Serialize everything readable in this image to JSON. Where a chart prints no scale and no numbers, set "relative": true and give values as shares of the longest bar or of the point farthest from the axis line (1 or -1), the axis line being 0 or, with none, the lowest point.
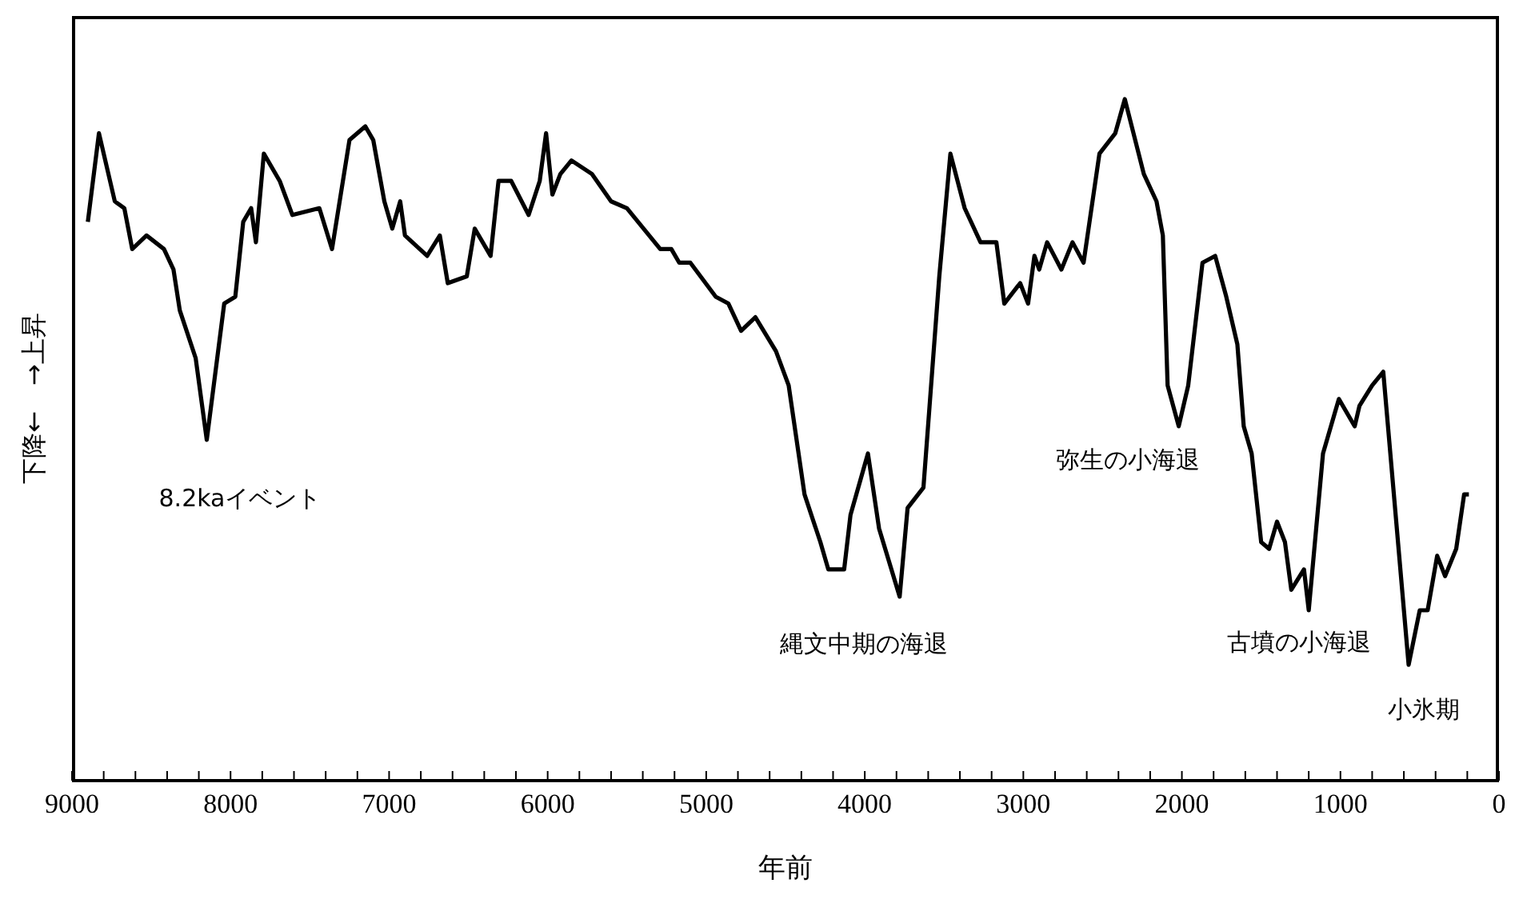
{
  "chart_data": {
    "type": "line",
    "relative": true,
    "xlabel": "年前",
    "ylabel": "下降←　→上昇",
    "xlim": [
      9000,
      0
    ],
    "xticks": [
      9000,
      {
        "value": 8800,
        "label": null
      },
      {
        "value": 8600,
        "label": null
      },
      {
        "value": 8400,
        "label": null
      },
      {
        "value": 8200,
        "label": null
      },
      8000,
      {
        "value": 7800,
        "label": null
      },
      {
        "value": 7600,
        "label": null
      },
      {
        "value": 7400,
        "label": null
      },
      {
        "value": 7200,
        "label": null
      },
      7000,
      {
        "value": 6800,
        "label": null
      },
      {
        "value": 6600,
        "label": null
      },
      {
        "value": 6400,
        "label": null
      },
      {
        "value": 6200,
        "label": null
      },
      6000,
      {
        "value": 5800,
        "label": null
      },
      {
        "value": 5600,
        "label": null
      },
      {
        "value": 5400,
        "label": null
      },
      {
        "value": 5200,
        "label": null
      },
      5000,
      {
        "value": 4800,
        "label": null
      },
      {
        "value": 4600,
        "label": null
      },
      {
        "value": 4400,
        "label": null
      },
      {
        "value": 4200,
        "label": null
      },
      4000,
      {
        "value": 3800,
        "label": null
      },
      {
        "value": 3600,
        "label": null
      },
      {
        "value": 3400,
        "label": null
      },
      {
        "value": 3200,
        "label": null
      },
      3000,
      {
        "value": 2800,
        "label": null
      },
      {
        "value": 2600,
        "label": null
      },
      {
        "value": 2400,
        "label": null
      },
      {
        "value": 2200,
        "label": null
      },
      2000,
      {
        "value": 1800,
        "label": null
      },
      {
        "value": 1600,
        "label": null
      },
      {
        "value": 1400,
        "label": null
      },
      {
        "value": 1200,
        "label": null
      },
      1000,
      {
        "value": 800,
        "label": null
      },
      {
        "value": 600,
        "label": null
      },
      {
        "value": 400,
        "label": null
      },
      {
        "value": 200,
        "label": null
      },
      0
    ],
    "grid": false,
    "legend": false,
    "series": [
      {
        "color": "#000000",
        "x": [
          8900,
          8830,
          8730,
          8670,
          8620,
          8530,
          8420,
          8360,
          8320,
          8220,
          8150,
          8040,
          7970,
          7920,
          7870,
          7840,
          7790,
          7690,
          7610,
          7440,
          7360,
          7250,
          7150,
          7100,
          7030,
          6980,
          6930,
          6900,
          6760,
          6680,
          6630,
          6510,
          6460,
          6360,
          6310,
          6230,
          6120,
          6050,
          6010,
          5970,
          5920,
          5850,
          5720,
          5600,
          5500,
          5290,
          5220,
          5170,
          5100,
          4940,
          4860,
          4780,
          4690,
          4560,
          4480,
          4380,
          4280,
          4230,
          4130,
          4090,
          3980,
          3910,
          3780,
          3730,
          3630,
          3530,
          3460,
          3370,
          3270,
          3170,
          3120,
          3020,
          2970,
          2930,
          2900,
          2850,
          2760,
          2690,
          2620,
          2520,
          2420,
          2360,
          2240,
          2160,
          2120,
          2090,
          2020,
          1960,
          1870,
          1790,
          1720,
          1650,
          1610,
          1560,
          1500,
          1450,
          1400,
          1350,
          1310,
          1230,
          1200,
          1110,
          1010,
          910,
          880,
          800,
          730,
          570,
          500,
          450,
          390,
          340,
          270,
          220,
          190
        ],
        "values": [
          0.82,
          0.95,
          0.85,
          0.84,
          0.78,
          0.8,
          0.78,
          0.75,
          0.69,
          0.62,
          0.5,
          0.7,
          0.71,
          0.82,
          0.84,
          0.79,
          0.92,
          0.88,
          0.83,
          0.84,
          0.78,
          0.94,
          0.96,
          0.94,
          0.85,
          0.81,
          0.85,
          0.8,
          0.77,
          0.8,
          0.73,
          0.74,
          0.81,
          0.77,
          0.88,
          0.88,
          0.83,
          0.88,
          0.95,
          0.86,
          0.89,
          0.91,
          0.89,
          0.85,
          0.84,
          0.78,
          0.78,
          0.76,
          0.76,
          0.71,
          0.7,
          0.66,
          0.68,
          0.63,
          0.58,
          0.42,
          0.35,
          0.31,
          0.31,
          0.39,
          0.48,
          0.37,
          0.27,
          0.4,
          0.43,
          0.74,
          0.92,
          0.84,
          0.79,
          0.79,
          0.7,
          0.73,
          0.7,
          0.77,
          0.75,
          0.79,
          0.75,
          0.79,
          0.76,
          0.92,
          0.95,
          1,
          0.89,
          0.85,
          0.8,
          0.58,
          0.52,
          0.58,
          0.76,
          0.77,
          0.71,
          0.64,
          0.52,
          0.48,
          0.35,
          0.34,
          0.38,
          0.35,
          0.28,
          0.31,
          0.25,
          0.48,
          0.56,
          0.52,
          0.55,
          0.58,
          0.6,
          0.17,
          0.25,
          0.25,
          0.33,
          0.3,
          0.34,
          0.42,
          0.42
        ]
      }
    ],
    "annotations": [
      "8.2kaイベント",
      "縄文中期の海退",
      "弥生の小海退",
      "古墳の小海退",
      "小氷期"
    ]
  }
}
